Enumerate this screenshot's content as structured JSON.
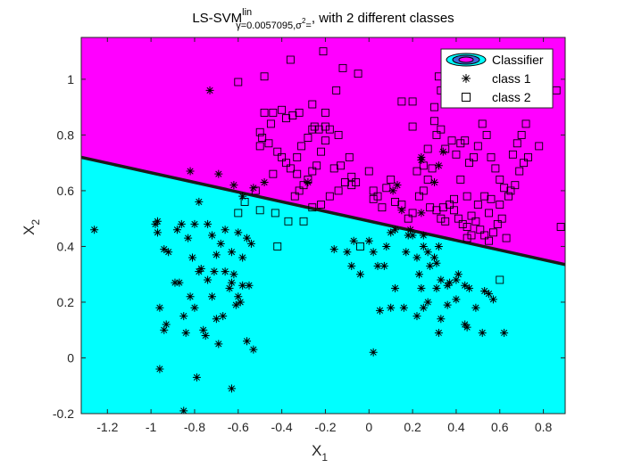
{
  "chart_data": {
    "type": "scatter",
    "title": {
      "main": "LS-SVM",
      "sup": "lin",
      "sub_gamma": "γ=0.0057095,σ",
      "sub_sigma_exp": "2",
      "sub_eq": "=",
      "suffix": ", with 2 different classes"
    },
    "xlabel": "X",
    "xlabel_sub": "1",
    "ylabel": "X",
    "ylabel_sub": "2",
    "xlim": [
      -1.32,
      0.9
    ],
    "ylim": [
      -0.2,
      1.15
    ],
    "xticks": [
      "-1.2",
      "-1",
      "-0.8",
      "-0.6",
      "-0.4",
      "-0.2",
      "0",
      "0.2",
      "0.4",
      "0.6",
      "0.8"
    ],
    "xtick_values": [
      -1.2,
      -1.0,
      -0.8,
      -0.6,
      -0.4,
      -0.2,
      0,
      0.2,
      0.4,
      0.6,
      0.8
    ],
    "yticks": [
      "-0.2",
      "0",
      "0.2",
      "0.4",
      "0.6",
      "0.8",
      "1"
    ],
    "ytick_values": [
      -0.2,
      0,
      0.2,
      0.4,
      0.6,
      0.8,
      1.0
    ],
    "boundary": {
      "x": [
        -1.32,
        0.9
      ],
      "y": [
        0.72,
        0.335
      ]
    },
    "region_colors": {
      "above": "#ff00ff",
      "below": "#00ffff"
    },
    "boundary_color": "#1a1a1a",
    "legend": {
      "placement": "top-right",
      "entries": [
        "Classifier",
        "class 1",
        "class 2"
      ]
    },
    "series": [
      {
        "name": "class 1",
        "marker": "asterisk",
        "points": [
          [
            -1.26,
            0.46
          ],
          [
            -0.98,
            0.48
          ],
          [
            -0.97,
            0.45
          ],
          [
            -0.97,
            0.49
          ],
          [
            -0.94,
            0.39
          ],
          [
            -0.92,
            0.38
          ],
          [
            -0.88,
            0.46
          ],
          [
            -0.86,
            0.48
          ],
          [
            -0.83,
            0.43
          ],
          [
            -0.81,
            0.36
          ],
          [
            -0.8,
            0.48
          ],
          [
            -0.78,
            0.56
          ],
          [
            -0.74,
            0.48
          ],
          [
            -0.72,
            0.44
          ],
          [
            -0.7,
            0.37
          ],
          [
            -0.68,
            0.41
          ],
          [
            -0.66,
            0.46
          ],
          [
            -0.63,
            0.38
          ],
          [
            -0.6,
            0.45
          ],
          [
            -0.58,
            0.36
          ],
          [
            -0.56,
            0.43
          ],
          [
            -0.54,
            0.41
          ],
          [
            -0.96,
            0.18
          ],
          [
            -0.94,
            0.1
          ],
          [
            -0.93,
            0.12
          ],
          [
            -0.89,
            0.27
          ],
          [
            -0.87,
            0.27
          ],
          [
            -0.85,
            0.15
          ],
          [
            -0.84,
            0.09
          ],
          [
            -0.82,
            0.22
          ],
          [
            -0.8,
            0.18
          ],
          [
            -0.78,
            0.31
          ],
          [
            -0.77,
            0.32
          ],
          [
            -0.76,
            0.1
          ],
          [
            -0.75,
            0.08
          ],
          [
            -0.74,
            0.28
          ],
          [
            -0.72,
            0.22
          ],
          [
            -0.71,
            0.31
          ],
          [
            -0.7,
            0.14
          ],
          [
            -0.69,
            0.05
          ],
          [
            -0.67,
            0.15
          ],
          [
            -0.66,
            0.31
          ],
          [
            -0.64,
            0.25
          ],
          [
            -0.63,
            0.27
          ],
          [
            -0.62,
            0.3
          ],
          [
            -0.61,
            0.19
          ],
          [
            -0.6,
            0.22
          ],
          [
            -0.59,
            0.2
          ],
          [
            -0.58,
            0.26
          ],
          [
            -0.56,
            0.06
          ],
          [
            -0.55,
            0.26
          ],
          [
            -0.53,
            0.03
          ],
          [
            -0.96,
            -0.04
          ],
          [
            -0.79,
            -0.07
          ],
          [
            -0.63,
            -0.11
          ],
          [
            -0.85,
            -0.19
          ],
          [
            -0.82,
            0.67
          ],
          [
            -0.69,
            0.66
          ],
          [
            -0.62,
            0.62
          ],
          [
            -0.58,
            0.58
          ],
          [
            -0.53,
            0.61
          ],
          [
            -0.73,
            0.96
          ],
          [
            -0.48,
            0.63
          ],
          [
            -0.28,
            0.63
          ],
          [
            -0.16,
            0.39
          ],
          [
            -0.1,
            0.38
          ],
          [
            -0.08,
            0.33
          ],
          [
            -0.07,
            0.42
          ],
          [
            -0.04,
            0.3
          ],
          [
            0.0,
            0.42
          ],
          [
            0.02,
            0.38
          ],
          [
            0.04,
            0.33
          ],
          [
            0.07,
            0.33
          ],
          [
            0.08,
            0.4
          ],
          [
            0.1,
            0.45
          ],
          [
            0.12,
            0.46
          ],
          [
            0.15,
            0.53
          ],
          [
            0.17,
            0.38
          ],
          [
            0.18,
            0.44
          ],
          [
            0.19,
            0.46
          ],
          [
            0.2,
            0.44
          ],
          [
            0.22,
            0.36
          ],
          [
            0.23,
            0.3
          ],
          [
            0.24,
            0.25
          ],
          [
            0.25,
            0.4
          ],
          [
            0.25,
            0.44
          ],
          [
            0.27,
            0.38
          ],
          [
            0.28,
            0.33
          ],
          [
            0.3,
            0.36
          ],
          [
            0.31,
            0.34
          ],
          [
            0.32,
            0.4
          ],
          [
            0.33,
            0.28
          ],
          [
            0.36,
            0.26
          ],
          [
            0.37,
            0.27
          ],
          [
            0.4,
            0.28
          ],
          [
            0.41,
            0.3
          ],
          [
            0.44,
            0.26
          ],
          [
            0.46,
            0.25
          ],
          [
            0.53,
            0.24
          ],
          [
            0.55,
            0.23
          ],
          [
            0.05,
            0.17
          ],
          [
            0.1,
            0.18
          ],
          [
            0.12,
            0.25
          ],
          [
            0.16,
            0.18
          ],
          [
            0.22,
            0.15
          ],
          [
            0.25,
            0.18
          ],
          [
            0.27,
            0.2
          ],
          [
            0.31,
            0.25
          ],
          [
            0.33,
            0.14
          ],
          [
            0.36,
            0.19
          ],
          [
            0.4,
            0.21
          ],
          [
            0.44,
            0.12
          ],
          [
            0.45,
            0.11
          ],
          [
            0.49,
            0.18
          ],
          [
            0.52,
            0.09
          ],
          [
            0.57,
            0.21
          ],
          [
            0.62,
            0.09
          ],
          [
            0.32,
            0.09
          ],
          [
            0.02,
            0.02
          ],
          [
            0.11,
            0.6
          ],
          [
            0.13,
            0.62
          ],
          [
            0.24,
            0.72
          ],
          [
            0.24,
            0.71
          ],
          [
            0.3,
            0.63
          ],
          [
            0.32,
            0.69
          ],
          [
            0.34,
            0.74
          ],
          [
            0.24,
            0.52
          ]
        ]
      },
      {
        "name": "class 2",
        "marker": "square",
        "points": [
          [
            -0.6,
            0.99
          ],
          [
            -0.48,
            1.01
          ],
          [
            -0.36,
            1.07
          ],
          [
            -0.21,
            1.1
          ],
          [
            -0.12,
            1.04
          ],
          [
            -0.05,
            1.02
          ],
          [
            -0.15,
            0.96
          ],
          [
            -0.26,
            0.91
          ],
          [
            -0.32,
            0.88
          ],
          [
            -0.35,
            0.87
          ],
          [
            -0.38,
            0.86
          ],
          [
            -0.44,
            0.88
          ],
          [
            -0.48,
            0.88
          ],
          [
            -0.45,
            0.84
          ],
          [
            -0.49,
            0.79
          ],
          [
            -0.5,
            0.76
          ],
          [
            -0.46,
            0.77
          ],
          [
            -0.42,
            0.74
          ],
          [
            -0.4,
            0.72
          ],
          [
            -0.38,
            0.7
          ],
          [
            -0.36,
            0.68
          ],
          [
            -0.33,
            0.72
          ],
          [
            -0.31,
            0.76
          ],
          [
            -0.28,
            0.79
          ],
          [
            -0.26,
            0.82
          ],
          [
            -0.25,
            0.83
          ],
          [
            -0.23,
            0.82
          ],
          [
            -0.2,
            0.83
          ],
          [
            -0.18,
            0.82
          ],
          [
            -0.2,
            0.78
          ],
          [
            -0.22,
            0.74
          ],
          [
            -0.24,
            0.69
          ],
          [
            -0.26,
            0.67
          ],
          [
            -0.28,
            0.64
          ],
          [
            -0.3,
            0.62
          ],
          [
            -0.32,
            0.6
          ],
          [
            -0.34,
            0.58
          ],
          [
            -0.44,
            0.66
          ],
          [
            -0.52,
            0.6
          ],
          [
            -0.57,
            0.56
          ],
          [
            -0.6,
            0.52
          ],
          [
            -0.5,
            0.53
          ],
          [
            -0.43,
            0.52
          ],
          [
            -0.37,
            0.49
          ],
          [
            -0.3,
            0.49
          ],
          [
            -0.26,
            0.54
          ],
          [
            -0.22,
            0.55
          ],
          [
            -0.18,
            0.58
          ],
          [
            -0.14,
            0.6
          ],
          [
            -0.11,
            0.63
          ],
          [
            -0.08,
            0.62
          ],
          [
            -0.16,
            0.68
          ],
          [
            -0.13,
            0.69
          ],
          [
            -0.09,
            0.72
          ],
          [
            -0.06,
            0.63
          ],
          [
            0.02,
            0.57
          ],
          [
            0.04,
            0.58
          ],
          [
            0.06,
            0.54
          ],
          [
            0.08,
            0.61
          ],
          [
            0.1,
            0.64
          ],
          [
            0.12,
            0.56
          ],
          [
            0.15,
            0.55
          ],
          [
            0.18,
            0.5
          ],
          [
            0.2,
            0.52
          ],
          [
            0.23,
            0.58
          ],
          [
            0.25,
            0.6
          ],
          [
            0.27,
            0.64
          ],
          [
            0.29,
            0.68
          ],
          [
            0.31,
            0.53
          ],
          [
            0.33,
            0.5
          ],
          [
            0.35,
            0.49
          ],
          [
            0.37,
            0.55
          ],
          [
            0.39,
            0.53
          ],
          [
            0.41,
            0.5
          ],
          [
            0.43,
            0.48
          ],
          [
            0.45,
            0.47
          ],
          [
            0.47,
            0.44
          ],
          [
            0.49,
            0.49
          ],
          [
            0.51,
            0.46
          ],
          [
            0.53,
            0.44
          ],
          [
            0.55,
            0.42
          ],
          [
            0.57,
            0.45
          ],
          [
            0.59,
            0.48
          ],
          [
            0.61,
            0.5
          ],
          [
            0.63,
            0.43
          ],
          [
            0.65,
            0.6
          ],
          [
            0.67,
            0.62
          ],
          [
            0.69,
            0.67
          ],
          [
            0.71,
            0.7
          ],
          [
            0.73,
            0.72
          ],
          [
            0.78,
            0.76
          ],
          [
            0.86,
            0.96
          ],
          [
            0.88,
            0.47
          ],
          [
            0.2,
            0.92
          ],
          [
            0.3,
            0.85
          ],
          [
            0.33,
            0.96
          ],
          [
            0.36,
            0.92
          ],
          [
            0.33,
            0.82
          ],
          [
            0.35,
            0.75
          ],
          [
            0.38,
            0.78
          ],
          [
            0.4,
            0.73
          ],
          [
            0.42,
            0.77
          ],
          [
            0.44,
            0.78
          ],
          [
            0.46,
            0.7
          ],
          [
            0.48,
            0.72
          ],
          [
            0.5,
            0.76
          ],
          [
            0.52,
            0.84
          ],
          [
            0.54,
            0.8
          ],
          [
            0.56,
            0.72
          ],
          [
            0.58,
            0.68
          ],
          [
            0.6,
            0.64
          ],
          [
            0.62,
            0.61
          ],
          [
            0.64,
            0.58
          ],
          [
            0.66,
            0.73
          ],
          [
            0.68,
            0.77
          ],
          [
            0.7,
            0.8
          ],
          [
            0.72,
            0.84
          ],
          [
            0.3,
            0.9
          ],
          [
            0.31,
            0.8
          ],
          [
            0.27,
            0.75
          ],
          [
            0.42,
            0.64
          ],
          [
            0.45,
            0.58
          ],
          [
            0.5,
            0.55
          ],
          [
            0.53,
            0.58
          ],
          [
            0.55,
            0.52
          ],
          [
            0.6,
            0.55
          ],
          [
            0.39,
            0.57
          ],
          [
            0.34,
            0.54
          ],
          [
            0.28,
            0.54
          ],
          [
            -0.04,
            0.4
          ],
          [
            -0.42,
            0.4
          ],
          [
            0.56,
            0.57
          ],
          [
            0.6,
            0.28
          ],
          [
            0.47,
            0.51
          ],
          [
            0.45,
            0.43
          ],
          [
            0.32,
            1.01
          ],
          [
            0.15,
            0.92
          ],
          [
            0.2,
            0.83
          ],
          [
            -0.5,
            0.81
          ],
          [
            -0.4,
            0.89
          ],
          [
            -0.2,
            0.88
          ],
          [
            -0.14,
            0.8
          ],
          [
            -0.08,
            0.65
          ],
          [
            0.0,
            0.67
          ],
          [
            0.02,
            0.6
          ],
          [
            0.22,
            0.67
          ],
          [
            0.25,
            0.69
          ],
          [
            -0.33,
            0.66
          ]
        ]
      }
    ]
  }
}
